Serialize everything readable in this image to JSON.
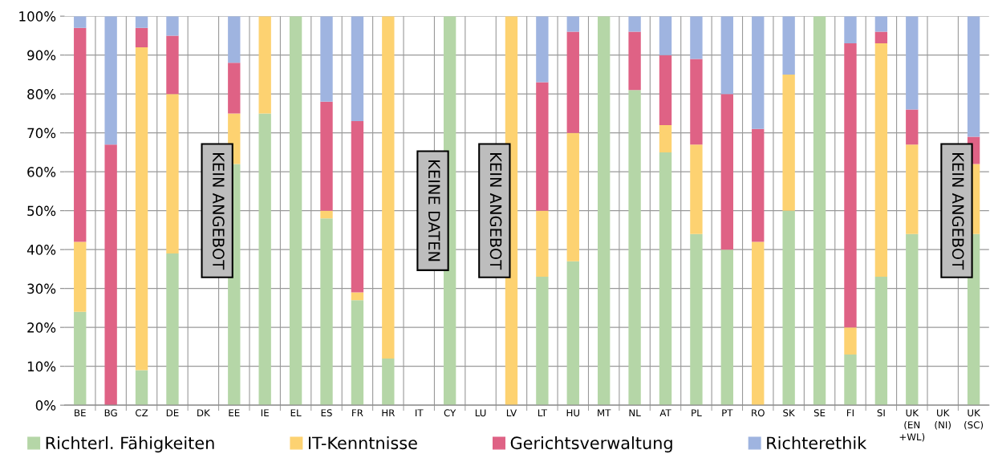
{
  "chart_data": {
    "type": "bar",
    "stacked": true,
    "categories": [
      "BE",
      "BG",
      "CZ",
      "DE",
      "DK",
      "EE",
      "IE",
      "EL",
      "ES",
      "FR",
      "HR",
      "IT",
      "CY",
      "LU",
      "LV",
      "LT",
      "HU",
      "MT",
      "NL",
      "AT",
      "PL",
      "PT",
      "RO",
      "SK",
      "SE",
      "FI",
      "SI",
      "UK\n(EN\n+WL)",
      "UK\n(NI)",
      "UK\n(SC)"
    ],
    "series": [
      {
        "name": "Richterl. Fähigkeiten",
        "color": "#b5d6a7",
        "values": [
          24,
          0,
          9,
          39,
          null,
          62,
          75,
          100,
          48,
          27,
          12,
          null,
          100,
          null,
          0,
          33,
          37,
          100,
          81,
          65,
          44,
          40,
          0,
          50,
          100,
          13,
          33,
          44,
          null,
          44
        ]
      },
      {
        "name": "IT-Kenntnisse",
        "color": "#fdd271",
        "values": [
          18,
          0,
          83,
          41,
          null,
          13,
          25,
          0,
          2,
          2,
          88,
          null,
          0,
          null,
          100,
          17,
          33,
          0,
          0,
          7,
          23,
          0,
          42,
          35,
          0,
          7,
          60,
          23,
          null,
          18
        ]
      },
      {
        "name": "Gerichtsverwaltung",
        "color": "#df6285",
        "values": [
          55,
          67,
          5,
          15,
          null,
          13,
          0,
          0,
          28,
          44,
          0,
          null,
          0,
          null,
          0,
          33,
          26,
          0,
          15,
          18,
          22,
          40,
          29,
          0,
          0,
          73,
          3,
          9,
          null,
          7
        ]
      },
      {
        "name": "Richterethik",
        "color": "#9fb4e0",
        "values": [
          3,
          33,
          3,
          5,
          null,
          12,
          0,
          0,
          22,
          27,
          0,
          null,
          0,
          null,
          0,
          17,
          4,
          0,
          4,
          10,
          11,
          20,
          29,
          15,
          0,
          7,
          4,
          24,
          null,
          31
        ]
      }
    ],
    "ylim": [
      0,
      100
    ],
    "yticks": [
      {
        "value": 0,
        "label": "0%"
      },
      {
        "value": 10,
        "label": "10%"
      },
      {
        "value": 20,
        "label": "20%"
      },
      {
        "value": 30,
        "label": "30%"
      },
      {
        "value": 40,
        "label": "40%"
      },
      {
        "value": 50,
        "label": "50%"
      },
      {
        "value": 60,
        "label": "60%"
      },
      {
        "value": 70,
        "label": "70%"
      },
      {
        "value": 80,
        "label": "80%"
      },
      {
        "value": 90,
        "label": "90%"
      },
      {
        "value": 100,
        "label": "100%"
      }
    ],
    "grid": true,
    "legend": "bottom",
    "annotations": [
      "KEIN ANGEBOT",
      "KEINE DATEN",
      "KEIN ANGEBOT",
      "KEIN ANGEBOT"
    ]
  }
}
